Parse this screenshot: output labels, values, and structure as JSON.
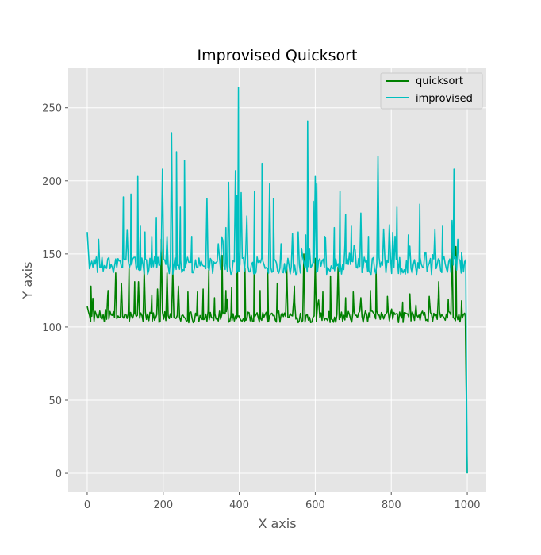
{
  "chart_data": {
    "type": "line",
    "title": "Improvised Quicksort",
    "xlabel": "X axis",
    "ylabel": "Y axis",
    "xlim": [
      -50,
      1050
    ],
    "ylim": [
      -13,
      277
    ],
    "xticks": [
      0,
      200,
      400,
      600,
      800,
      1000
    ],
    "yticks": [
      0,
      50,
      100,
      150,
      200,
      250
    ],
    "grid": true,
    "legend_position": "top-right",
    "series": [
      {
        "name": "quicksort",
        "color": "#008000",
        "baseline": 107,
        "noise": 4,
        "spikes": [
          [
            0,
            114
          ],
          [
            10,
            128
          ],
          [
            18,
            104
          ],
          [
            55,
            125
          ],
          [
            75,
            137
          ],
          [
            90,
            130
          ],
          [
            110,
            140
          ],
          [
            125,
            131
          ],
          [
            135,
            131
          ],
          [
            150,
            140
          ],
          [
            170,
            122
          ],
          [
            185,
            126
          ],
          [
            195,
            160
          ],
          [
            210,
            137
          ],
          [
            225,
            140
          ],
          [
            240,
            128
          ],
          [
            265,
            124
          ],
          [
            290,
            124
          ],
          [
            305,
            126
          ],
          [
            320,
            140
          ],
          [
            335,
            120
          ],
          [
            355,
            149
          ],
          [
            365,
            125
          ],
          [
            380,
            127
          ],
          [
            395,
            158
          ],
          [
            415,
            140
          ],
          [
            440,
            162
          ],
          [
            455,
            125
          ],
          [
            475,
            140
          ],
          [
            500,
            130
          ],
          [
            525,
            140
          ],
          [
            545,
            128
          ],
          [
            570,
            150
          ],
          [
            600,
            147
          ],
          [
            620,
            124
          ],
          [
            640,
            135
          ],
          [
            660,
            141
          ],
          [
            680,
            120
          ],
          [
            700,
            124
          ],
          [
            720,
            120
          ],
          [
            745,
            125
          ],
          [
            760,
            139
          ],
          [
            790,
            121
          ],
          [
            830,
            117
          ],
          [
            865,
            115
          ],
          [
            900,
            121
          ],
          [
            925,
            131
          ],
          [
            950,
            119
          ],
          [
            960,
            157
          ],
          [
            970,
            155
          ],
          [
            985,
            118
          ]
        ],
        "end_points": [
          [
            995,
            107
          ],
          [
            1000,
            0
          ]
        ]
      },
      {
        "name": "improvised",
        "color": "#00BFBF",
        "baseline": 142,
        "noise": 6,
        "spikes": [
          [
            0,
            165
          ],
          [
            3,
            152
          ],
          [
            30,
            160
          ],
          [
            95,
            189
          ],
          [
            115,
            191
          ],
          [
            133,
            203
          ],
          [
            140,
            169
          ],
          [
            152,
            165
          ],
          [
            170,
            162
          ],
          [
            182,
            175
          ],
          [
            198,
            208
          ],
          [
            210,
            162
          ],
          [
            222,
            233
          ],
          [
            235,
            220
          ],
          [
            245,
            182
          ],
          [
            256,
            214
          ],
          [
            275,
            162
          ],
          [
            315,
            188
          ],
          [
            345,
            157
          ],
          [
            365,
            168
          ],
          [
            372,
            199
          ],
          [
            390,
            207
          ],
          [
            394,
            190
          ],
          [
            398,
            264
          ],
          [
            405,
            192
          ],
          [
            420,
            176
          ],
          [
            440,
            193
          ],
          [
            460,
            212
          ],
          [
            480,
            198
          ],
          [
            490,
            188
          ],
          [
            510,
            157
          ],
          [
            540,
            164
          ],
          [
            555,
            165
          ],
          [
            575,
            163
          ],
          [
            580,
            241
          ],
          [
            595,
            186
          ],
          [
            600,
            203
          ],
          [
            604,
            198
          ],
          [
            625,
            162
          ],
          [
            650,
            168
          ],
          [
            665,
            193
          ],
          [
            680,
            177
          ],
          [
            695,
            169
          ],
          [
            720,
            178
          ],
          [
            740,
            162
          ],
          [
            765,
            217
          ],
          [
            780,
            167
          ],
          [
            795,
            170
          ],
          [
            815,
            182
          ],
          [
            845,
            163
          ],
          [
            875,
            184
          ],
          [
            915,
            167
          ],
          [
            935,
            169
          ],
          [
            960,
            173
          ],
          [
            965,
            208
          ],
          [
            975,
            160
          ],
          [
            985,
            151
          ]
        ],
        "end_points": [
          [
            996,
            146
          ],
          [
            1000,
            0
          ]
        ]
      }
    ]
  }
}
